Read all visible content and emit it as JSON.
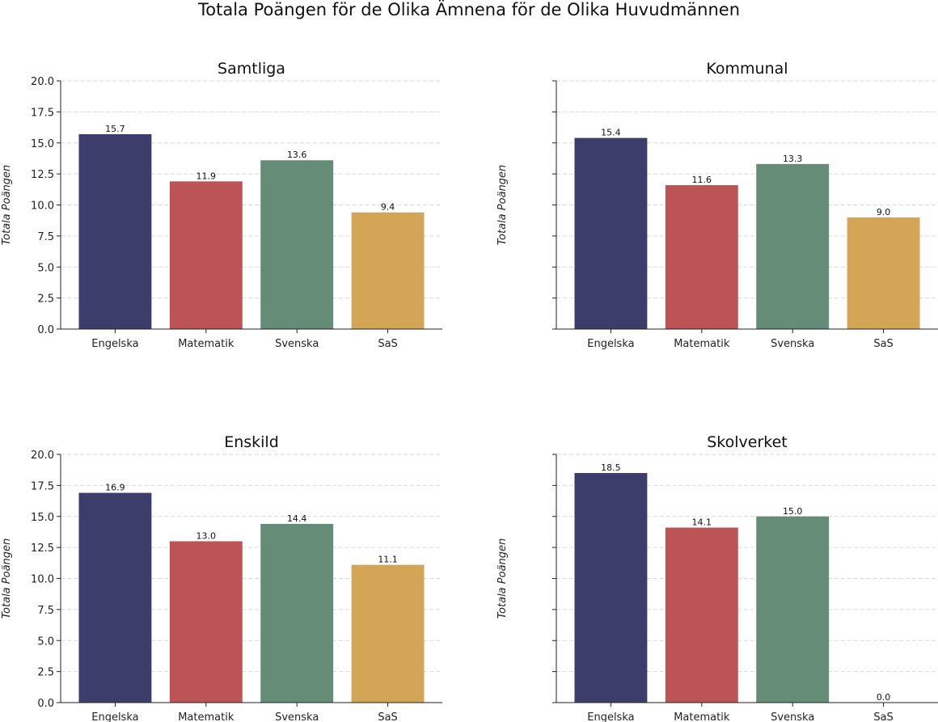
{
  "title": "Totala Poängen för de Olika Ämnena för de Olika Huvudmännen",
  "colors": {
    "Engelska": "#3d3d6b",
    "Matematik": "#bc5456",
    "Svenska": "#648c76",
    "SaS": "#d4a557",
    "grid": "#d9d9d9",
    "axis": "#222222"
  },
  "chart_data": [
    {
      "type": "bar",
      "title": "Samtliga",
      "ylabel": "Totala Poängen",
      "categories": [
        "Engelska",
        "Matematik",
        "Svenska",
        "SaS"
      ],
      "values": [
        15.7,
        11.9,
        13.6,
        9.4
      ],
      "value_labels": [
        "15.7",
        "11.9",
        "13.6",
        "9.4"
      ],
      "ylim": [
        0,
        20
      ],
      "yticks": [
        "0.0",
        "2.5",
        "5.0",
        "7.5",
        "10.0",
        "12.5",
        "15.0",
        "17.5",
        "20.0"
      ],
      "grid": true
    },
    {
      "type": "bar",
      "title": "Kommunal",
      "ylabel": "Totala Poängen",
      "categories": [
        "Engelska",
        "Matematik",
        "Svenska",
        "SaS"
      ],
      "values": [
        15.4,
        11.6,
        13.3,
        9.0
      ],
      "value_labels": [
        "15.4",
        "11.6",
        "13.3",
        "9.0"
      ],
      "ylim": [
        0,
        20
      ],
      "yticks": [
        "",
        "",
        "",
        "",
        "",
        "",
        "",
        "",
        ""
      ],
      "grid": true
    },
    {
      "type": "bar",
      "title": "Enskild",
      "ylabel": "Totala Poängen",
      "categories": [
        "Engelska",
        "Matematik",
        "Svenska",
        "SaS"
      ],
      "values": [
        16.9,
        13.0,
        14.4,
        11.1
      ],
      "value_labels": [
        "16.9",
        "13.0",
        "14.4",
        "11.1"
      ],
      "ylim": [
        0,
        20
      ],
      "yticks": [
        "0.0",
        "2.5",
        "5.0",
        "7.5",
        "10.0",
        "12.5",
        "15.0",
        "17.5",
        "20.0"
      ],
      "grid": true
    },
    {
      "type": "bar",
      "title": "Skolverket",
      "ylabel": "Totala Poängen",
      "categories": [
        "Engelska",
        "Matematik",
        "Svenska",
        "SaS"
      ],
      "values": [
        18.5,
        14.1,
        15.0,
        0.0
      ],
      "value_labels": [
        "18.5",
        "14.1",
        "15.0",
        "0.0"
      ],
      "ylim": [
        0,
        20
      ],
      "yticks": [
        "",
        "",
        "",
        "",
        "",
        "",
        "",
        "",
        ""
      ],
      "grid": true
    }
  ]
}
